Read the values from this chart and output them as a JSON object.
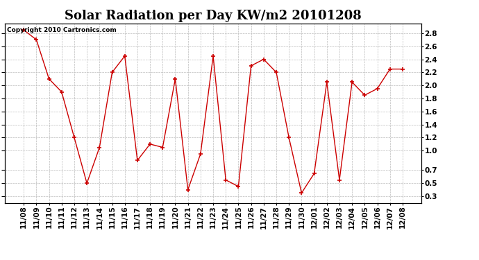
{
  "title": "Solar Radiation per Day KW/m2 20101208",
  "copyright": "Copyright 2010 Cartronics.com",
  "labels": [
    "11/08",
    "11/09",
    "11/10",
    "11/11",
    "11/12",
    "11/13",
    "11/14",
    "11/15",
    "11/16",
    "11/17",
    "11/18",
    "11/19",
    "11/20",
    "11/21",
    "11/22",
    "11/23",
    "11/24",
    "11/25",
    "11/26",
    "11/27",
    "11/28",
    "11/29",
    "11/30",
    "12/01",
    "12/02",
    "12/03",
    "12/04",
    "12/05",
    "12/06",
    "12/07",
    "12/08"
  ],
  "values": [
    2.85,
    2.7,
    2.1,
    1.9,
    1.2,
    0.5,
    1.05,
    2.2,
    2.45,
    0.85,
    1.1,
    1.05,
    2.1,
    0.4,
    0.95,
    2.45,
    0.55,
    0.45,
    2.3,
    2.4,
    2.2,
    1.2,
    0.35,
    0.65,
    2.05,
    0.55,
    2.05,
    1.85,
    1.95,
    2.25,
    2.25
  ],
  "line_color": "#cc0000",
  "marker_color": "#cc0000",
  "bg_color": "#ffffff",
  "grid_color": "#bbbbbb",
  "ylim_min": 0.2,
  "ylim_max": 2.95,
  "yticks": [
    0.3,
    0.5,
    0.7,
    1.0,
    1.2,
    1.4,
    1.6,
    1.8,
    2.0,
    2.2,
    2.4,
    2.6,
    2.8
  ],
  "ytick_labels": [
    "0.3",
    "0.5",
    "0.7",
    "1.0",
    "1.2",
    "1.4",
    "1.6",
    "1.8",
    "2.0",
    "2.2",
    "2.4",
    "2.6",
    "2.8"
  ],
  "title_fontsize": 13,
  "tick_fontsize": 7.5,
  "copyright_fontsize": 6.5
}
